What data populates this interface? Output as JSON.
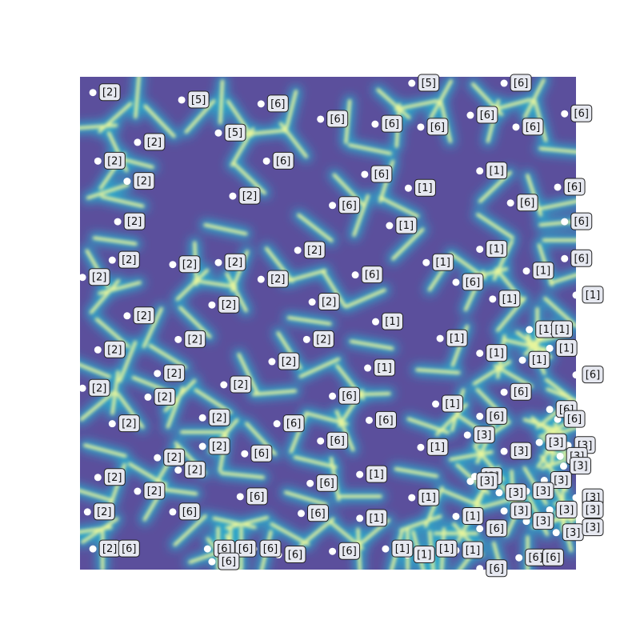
{
  "chart_data": {
    "type": "scatter",
    "title": "",
    "xlabel": "",
    "ylabel": "",
    "grid": false,
    "background": "heatmap cell-boundary field (viridis-like, low=purple, high=yellow/red)",
    "colors": {
      "low": "#5b4f9c",
      "mid": "#2fa4c8",
      "high": "#e7f59c",
      "peak": "#c0301f",
      "point": "#ffffff",
      "label_box": "#e6e8f0"
    },
    "xlim": [
      0,
      100
    ],
    "ylim": [
      0,
      100
    ],
    "points": [
      {
        "x": 2.6,
        "y": 96.8,
        "label": "[2]"
      },
      {
        "x": 20.5,
        "y": 95.3,
        "label": "[5]"
      },
      {
        "x": 36.5,
        "y": 94.5,
        "label": "[6]"
      },
      {
        "x": 66.9,
        "y": 98.7,
        "label": "[5]"
      },
      {
        "x": 85.5,
        "y": 98.7,
        "label": "[6]"
      },
      {
        "x": 48.5,
        "y": 91.4,
        "label": "[6]"
      },
      {
        "x": 59.5,
        "y": 90.4,
        "label": "[6]"
      },
      {
        "x": 78.7,
        "y": 92.2,
        "label": "[6]"
      },
      {
        "x": 97.7,
        "y": 92.5,
        "label": "[6]"
      },
      {
        "x": 27.9,
        "y": 88.6,
        "label": "[5]"
      },
      {
        "x": 68.7,
        "y": 89.8,
        "label": "[6]"
      },
      {
        "x": 87.9,
        "y": 89.8,
        "label": "[6]"
      },
      {
        "x": 11.6,
        "y": 86.7,
        "label": "[2]"
      },
      {
        "x": 3.6,
        "y": 82.9,
        "label": "[2]"
      },
      {
        "x": 37.6,
        "y": 82.9,
        "label": "[6]"
      },
      {
        "x": 57.4,
        "y": 80.2,
        "label": "[6]"
      },
      {
        "x": 80.6,
        "y": 80.9,
        "label": "[1]"
      },
      {
        "x": 9.5,
        "y": 78.8,
        "label": "[2]"
      },
      {
        "x": 66.2,
        "y": 77.4,
        "label": "[1]"
      },
      {
        "x": 96.3,
        "y": 77.6,
        "label": "[6]"
      },
      {
        "x": 30.8,
        "y": 75.8,
        "label": "[2]"
      },
      {
        "x": 50.9,
        "y": 73.9,
        "label": "[6]"
      },
      {
        "x": 86.8,
        "y": 74.4,
        "label": "[6]"
      },
      {
        "x": 7.6,
        "y": 70.6,
        "label": "[2]"
      },
      {
        "x": 62.4,
        "y": 69.8,
        "label": "[1]"
      },
      {
        "x": 97.7,
        "y": 70.6,
        "label": "[6]"
      },
      {
        "x": 43.9,
        "y": 64.8,
        "label": "[2]"
      },
      {
        "x": 80.6,
        "y": 65.0,
        "label": "[1]"
      },
      {
        "x": 6.5,
        "y": 62.8,
        "label": "[2]"
      },
      {
        "x": 18.7,
        "y": 61.9,
        "label": "[2]"
      },
      {
        "x": 27.9,
        "y": 62.3,
        "label": "[2]"
      },
      {
        "x": 69.8,
        "y": 62.3,
        "label": "[1]"
      },
      {
        "x": 97.7,
        "y": 63.1,
        "label": "[6]"
      },
      {
        "x": 0.5,
        "y": 59.3,
        "label": "[2]"
      },
      {
        "x": 36.5,
        "y": 58.9,
        "label": "[2]"
      },
      {
        "x": 55.5,
        "y": 59.8,
        "label": "[6]"
      },
      {
        "x": 75.8,
        "y": 58.3,
        "label": "[6]"
      },
      {
        "x": 90.0,
        "y": 60.6,
        "label": "[1]"
      },
      {
        "x": 100.0,
        "y": 55.7,
        "label": "[1]"
      },
      {
        "x": 46.8,
        "y": 54.3,
        "label": "[2]"
      },
      {
        "x": 26.6,
        "y": 53.7,
        "label": "[2]"
      },
      {
        "x": 83.2,
        "y": 54.9,
        "label": "[1]"
      },
      {
        "x": 9.5,
        "y": 51.5,
        "label": "[2]"
      },
      {
        "x": 59.6,
        "y": 50.3,
        "label": "[1]"
      },
      {
        "x": 90.6,
        "y": 48.7,
        "label": "[1]"
      },
      {
        "x": 93.8,
        "y": 48.7,
        "label": "[1]"
      },
      {
        "x": 19.8,
        "y": 46.7,
        "label": "[2]"
      },
      {
        "x": 45.7,
        "y": 46.7,
        "label": "[2]"
      },
      {
        "x": 72.6,
        "y": 46.9,
        "label": "[1]"
      },
      {
        "x": 3.6,
        "y": 44.6,
        "label": "[2]"
      },
      {
        "x": 80.6,
        "y": 43.9,
        "label": "[1]"
      },
      {
        "x": 94.7,
        "y": 44.9,
        "label": "[1]"
      },
      {
        "x": 38.7,
        "y": 42.2,
        "label": "[2]"
      },
      {
        "x": 58.0,
        "y": 40.9,
        "label": "[1]"
      },
      {
        "x": 89.2,
        "y": 42.5,
        "label": "[1]"
      },
      {
        "x": 15.6,
        "y": 39.8,
        "label": "[2]"
      },
      {
        "x": 100.0,
        "y": 39.5,
        "label": "[6]"
      },
      {
        "x": 0.5,
        "y": 36.8,
        "label": "[2]"
      },
      {
        "x": 29.0,
        "y": 37.5,
        "label": "[2]"
      },
      {
        "x": 85.5,
        "y": 36.0,
        "label": "[6]"
      },
      {
        "x": 13.7,
        "y": 35.0,
        "label": "[2]"
      },
      {
        "x": 50.9,
        "y": 35.2,
        "label": "[6]"
      },
      {
        "x": 71.7,
        "y": 33.6,
        "label": "[1]"
      },
      {
        "x": 94.7,
        "y": 32.5,
        "label": "[6]"
      },
      {
        "x": 24.7,
        "y": 30.8,
        "label": "[2]"
      },
      {
        "x": 58.3,
        "y": 30.3,
        "label": "[6]"
      },
      {
        "x": 80.6,
        "y": 31.1,
        "label": "[6]"
      },
      {
        "x": 96.3,
        "y": 30.5,
        "label": "[6]"
      },
      {
        "x": 6.5,
        "y": 29.6,
        "label": "[2]"
      },
      {
        "x": 39.7,
        "y": 29.6,
        "label": "[6]"
      },
      {
        "x": 78.1,
        "y": 27.3,
        "label": "[3]"
      },
      {
        "x": 48.5,
        "y": 26.1,
        "label": "[6]"
      },
      {
        "x": 24.7,
        "y": 25.0,
        "label": "[2]"
      },
      {
        "x": 68.7,
        "y": 24.8,
        "label": "[1]"
      },
      {
        "x": 92.6,
        "y": 25.8,
        "label": "[3]"
      },
      {
        "x": 98.4,
        "y": 25.2,
        "label": "[3]"
      },
      {
        "x": 33.2,
        "y": 23.5,
        "label": "[6]"
      },
      {
        "x": 15.6,
        "y": 22.7,
        "label": "[2]"
      },
      {
        "x": 85.5,
        "y": 24.0,
        "label": "[3]"
      },
      {
        "x": 96.8,
        "y": 23.0,
        "label": "[3]"
      },
      {
        "x": 97.5,
        "y": 21.0,
        "label": "[3]"
      },
      {
        "x": 19.8,
        "y": 20.2,
        "label": "[2]"
      },
      {
        "x": 3.6,
        "y": 18.7,
        "label": "[2]"
      },
      {
        "x": 56.4,
        "y": 19.3,
        "label": "[1]"
      },
      {
        "x": 79.6,
        "y": 18.9,
        "label": "[3]"
      },
      {
        "x": 93.6,
        "y": 18.1,
        "label": "[3]"
      },
      {
        "x": 46.4,
        "y": 17.5,
        "label": "[6]"
      },
      {
        "x": 78.7,
        "y": 17.9,
        "label": "[3]"
      },
      {
        "x": 11.6,
        "y": 15.9,
        "label": "[2]"
      },
      {
        "x": 84.5,
        "y": 15.6,
        "label": "[3]"
      },
      {
        "x": 90.0,
        "y": 15.9,
        "label": "[3]"
      },
      {
        "x": 32.3,
        "y": 14.8,
        "label": "[6]"
      },
      {
        "x": 66.9,
        "y": 14.6,
        "label": "[1]"
      },
      {
        "x": 100.0,
        "y": 14.6,
        "label": "[3]"
      },
      {
        "x": 94.7,
        "y": 12.1,
        "label": "[3]"
      },
      {
        "x": 1.5,
        "y": 11.7,
        "label": "[2]"
      },
      {
        "x": 18.7,
        "y": 11.7,
        "label": "[6]"
      },
      {
        "x": 44.6,
        "y": 11.4,
        "label": "[6]"
      },
      {
        "x": 85.5,
        "y": 11.9,
        "label": "[3]"
      },
      {
        "x": 100.0,
        "y": 12.1,
        "label": "[3]"
      },
      {
        "x": 56.4,
        "y": 10.4,
        "label": "[1]"
      },
      {
        "x": 75.8,
        "y": 10.8,
        "label": "[1]"
      },
      {
        "x": 90.0,
        "y": 9.8,
        "label": "[3]"
      },
      {
        "x": 80.6,
        "y": 8.3,
        "label": "[6]"
      },
      {
        "x": 96.0,
        "y": 7.5,
        "label": "[3]"
      },
      {
        "x": 100.0,
        "y": 8.5,
        "label": "[3]"
      },
      {
        "x": 2.6,
        "y": 4.2,
        "label": "[2]"
      },
      {
        "x": 6.5,
        "y": 4.2,
        "label": "[6]"
      },
      {
        "x": 25.7,
        "y": 4.2,
        "label": "[6]"
      },
      {
        "x": 30.0,
        "y": 4.2,
        "label": "[6]"
      },
      {
        "x": 35.0,
        "y": 4.2,
        "label": "[6]"
      },
      {
        "x": 40.0,
        "y": 3.0,
        "label": "[6]"
      },
      {
        "x": 50.9,
        "y": 3.7,
        "label": "[6]"
      },
      {
        "x": 61.6,
        "y": 4.2,
        "label": "[1]"
      },
      {
        "x": 66.0,
        "y": 3.0,
        "label": "[1]"
      },
      {
        "x": 70.5,
        "y": 4.2,
        "label": "[1]"
      },
      {
        "x": 75.8,
        "y": 3.9,
        "label": "[1]"
      },
      {
        "x": 88.5,
        "y": 2.4,
        "label": "[6]"
      },
      {
        "x": 92.0,
        "y": 2.4,
        "label": "[6]"
      },
      {
        "x": 26.6,
        "y": 1.6,
        "label": "[6]"
      },
      {
        "x": 80.6,
        "y": 0.2,
        "label": "[6]"
      }
    ]
  }
}
